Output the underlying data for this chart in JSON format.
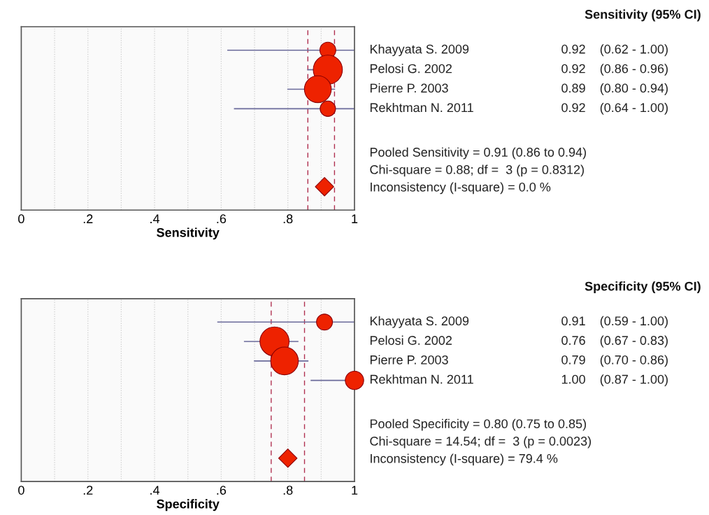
{
  "chart_data": [
    {
      "type": "bubble",
      "orientation": "horizontal",
      "xlabel": "Sensitivity",
      "categories": [
        "Khayyata S. 2009",
        "Pelosi G. 2002",
        "Pierre P. 2003",
        "Rekhtman N. 2011",
        null,
        null,
        null,
        null
      ],
      "series": [
        {
          "type": "bubble",
          "color": "#ee2200",
          "values": [
            0.92,
            0.92,
            0.89,
            0.92,
            null,
            null,
            null,
            null
          ],
          "sizes": [
            0.3,
            1,
            0.85,
            0.28,
            null,
            null,
            null,
            null
          ],
          "errors": [
            [
              0.62,
              1.0
            ],
            [
              0.86,
              0.96
            ],
            [
              0.8,
              0.94
            ],
            [
              0.64,
              1.0
            ],
            null,
            null,
            null,
            null
          ],
          "value_labels": [
            "0.92    (0.62 - 1.00)",
            "0.92    (0.86 - 0.96)",
            "0.89    (0.80 - 0.94)",
            "0.92    (0.64 - 1.00)",
            null,
            null,
            null,
            null
          ]
        },
        {
          "type": "scatter",
          "marker": "diamond",
          "color": "#ee2200",
          "values": [
            null,
            null,
            null,
            null,
            null,
            null,
            null,
            0.91
          ]
        }
      ],
      "ref_lines": [
        {
          "axis": "x",
          "value": 0.86,
          "color": "#b03050",
          "line_style": "dashed"
        },
        {
          "axis": "x",
          "value": 0.94,
          "color": "#b03050",
          "line_style": "dashed"
        }
      ],
      "xlim": [
        0,
        1
      ],
      "xticks": [
        0,
        {
          "value": 0.1,
          "label": null
        },
        {
          "value": 0.2,
          "label": ".2"
        },
        {
          "value": 0.3,
          "label": null
        },
        {
          "value": 0.4,
          "label": ".4"
        },
        {
          "value": 0.5,
          "label": null
        },
        {
          "value": 0.6,
          "label": ".6"
        },
        {
          "value": 0.7,
          "label": null
        },
        {
          "value": 0.8,
          "label": ".8"
        },
        {
          "value": 0.9,
          "label": null
        },
        1
      ],
      "grid": "x",
      "annotations": [
        "Sensitivity (95% CI)",
        "Pooled Sensitivity = 0.91 (0.86 to 0.94)",
        "Chi-square = 0.88; df =  3 (p = 0.8312)",
        "Inconsistency (I-square) = 0.0 %"
      ]
    },
    {
      "type": "bubble",
      "orientation": "horizontal",
      "xlabel": "Specificity",
      "categories": [
        "Khayyata S. 2009",
        "Pelosi G. 2002",
        "Pierre P. 2003",
        "Rekhtman N. 2011",
        null,
        null,
        null,
        null
      ],
      "series": [
        {
          "type": "bubble",
          "color": "#ee2200",
          "values": [
            0.91,
            0.76,
            0.79,
            1.0,
            null,
            null,
            null,
            null
          ],
          "sizes": [
            0.3,
            1,
            0.9,
            0.4,
            null,
            null,
            null,
            null
          ],
          "errors": [
            [
              0.59,
              1.0
            ],
            [
              0.67,
              0.83
            ],
            [
              0.7,
              0.86
            ],
            [
              0.87,
              1.0
            ],
            null,
            null,
            null,
            null
          ],
          "value_labels": [
            "0.91    (0.59 - 1.00)",
            "0.76    (0.67 - 0.83)",
            "0.79    (0.70 - 0.86)",
            "1.00    (0.87 - 1.00)",
            null,
            null,
            null,
            null
          ]
        },
        {
          "type": "scatter",
          "marker": "diamond",
          "color": "#ee2200",
          "values": [
            null,
            null,
            null,
            null,
            null,
            null,
            null,
            0.8
          ]
        }
      ],
      "ref_lines": [
        {
          "axis": "x",
          "value": 0.75,
          "color": "#b03050",
          "line_style": "dashed"
        },
        {
          "axis": "x",
          "value": 0.85,
          "color": "#b03050",
          "line_style": "dashed"
        }
      ],
      "xlim": [
        0,
        1
      ],
      "xticks": [
        0,
        {
          "value": 0.1,
          "label": null
        },
        {
          "value": 0.2,
          "label": ".2"
        },
        {
          "value": 0.3,
          "label": null
        },
        {
          "value": 0.4,
          "label": ".4"
        },
        {
          "value": 0.5,
          "label": null
        },
        {
          "value": 0.6,
          "label": ".6"
        },
        {
          "value": 0.7,
          "label": null
        },
        {
          "value": 0.8,
          "label": ".8"
        },
        {
          "value": 0.9,
          "label": null
        },
        1
      ],
      "grid": "x",
      "annotations": [
        "Specificity (95% CI)",
        "Pooled Specificity = 0.80 (0.75 to 0.85)",
        "Chi-square = 14.54; df =  3 (p = 0.0023)",
        "Inconsistency (I-square) = 79.4 %"
      ]
    }
  ]
}
